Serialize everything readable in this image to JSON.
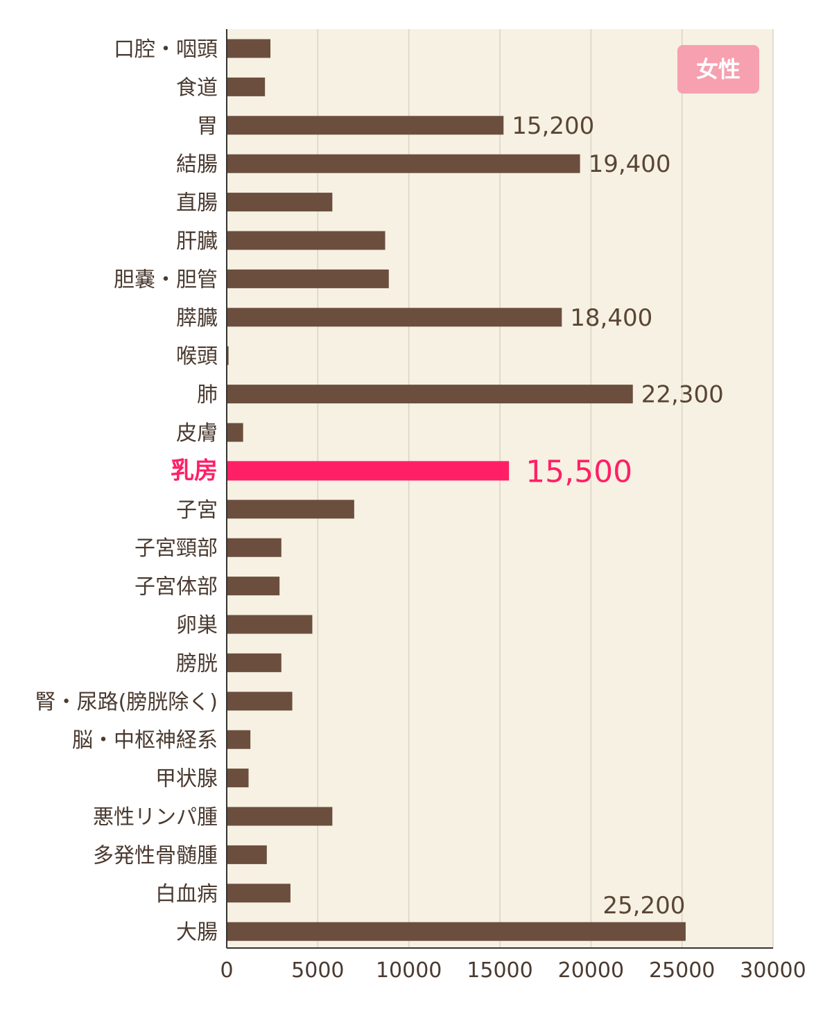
{
  "chart_data": {
    "type": "bar",
    "orientation": "horizontal",
    "badge": "女性",
    "xlim": [
      0,
      30000
    ],
    "xticks": [
      0,
      5000,
      10000,
      15000,
      20000,
      25000,
      30000
    ],
    "grid": true,
    "highlight_category": "乳房",
    "colors": {
      "bar": "#6b4e3d",
      "highlight": "#ff1f66",
      "plot_bg": "#f6f1e3",
      "badge": "#f6a0b0",
      "grid": "#d9d4c4"
    },
    "categories": [
      "口腔・咽頭",
      "食道",
      "胃",
      "結腸",
      "直腸",
      "肝臓",
      "胆嚢・胆管",
      "膵臓",
      "喉頭",
      "肺",
      "皮膚",
      "乳房",
      "子宮",
      "子宮頸部",
      "子宮体部",
      "卵巣",
      "膀胱",
      "腎・尿路(膀胱除く)",
      "脳・中枢神経系",
      "甲状腺",
      "悪性リンパ腫",
      "多発性骨髄腫",
      "白血病",
      "大腸"
    ],
    "values": [
      2400,
      2100,
      15200,
      19400,
      5800,
      8700,
      8900,
      18400,
      100,
      22300,
      900,
      15500,
      7000,
      3000,
      2900,
      4700,
      3000,
      3600,
      1300,
      1200,
      5800,
      2200,
      3500,
      25200
    ],
    "data_labels": [
      null,
      null,
      "15,200",
      "19,400",
      null,
      null,
      null,
      "18,400",
      null,
      "22,300",
      null,
      "15,500",
      null,
      null,
      null,
      null,
      null,
      null,
      null,
      null,
      null,
      null,
      null,
      "25,200"
    ]
  }
}
